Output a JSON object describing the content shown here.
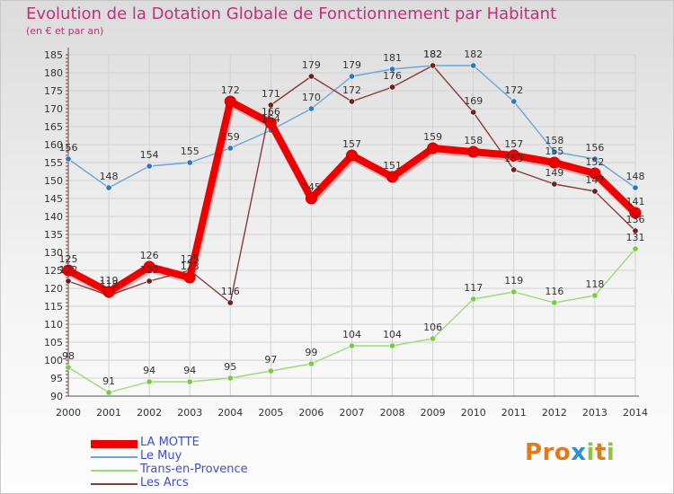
{
  "header": {
    "title": "Evolution de la Dotation Globale de Fonctionnement par Habitant",
    "subtitle": "(en € et par an)"
  },
  "logo": {
    "text": "Proxiti",
    "letters": [
      "P",
      "r",
      "o",
      "x",
      "i",
      "t",
      "i"
    ],
    "colors": [
      "#e07b1a",
      "#e07b1a",
      "#e07b1a",
      "#2a8fd6",
      "#8cc63f",
      "#e07b1a",
      "#8cc63f"
    ]
  },
  "chart_data": {
    "type": "line",
    "title": "Evolution de la Dotation Globale de Fonctionnement par Habitant",
    "subtitle": "(en € et par an)",
    "xlabel": "",
    "ylabel": "",
    "categories": [
      "2000",
      "2001",
      "2002",
      "2003",
      "2004",
      "2005",
      "2006",
      "2007",
      "2008",
      "2009",
      "2010",
      "2011",
      "2012",
      "2013",
      "2014"
    ],
    "ylim": [
      90,
      185
    ],
    "yticks": [
      90,
      95,
      100,
      105,
      110,
      115,
      120,
      125,
      130,
      135,
      140,
      145,
      150,
      155,
      160,
      165,
      170,
      175,
      180,
      185
    ],
    "grid": true,
    "legend_position": "bottom-left",
    "series": [
      {
        "name": "Trans-en-Provence",
        "color": "#99dd77",
        "marker": "#77cc44",
        "values": [
          98,
          91,
          94,
          94,
          95,
          97,
          99,
          104,
          104,
          106,
          117,
          119,
          116,
          118,
          131
        ],
        "labels": [
          "98",
          "91",
          "94",
          "94",
          "95",
          "97",
          "99",
          "104",
          "104",
          "106",
          "117",
          "119",
          "116",
          "118",
          "131"
        ]
      },
      {
        "name": "Le Muy",
        "color": "#6ba7d8",
        "marker": "#2d78c0",
        "values": [
          156,
          148,
          154,
          155,
          159,
          164,
          170,
          179,
          181,
          182,
          182,
          172,
          158,
          156,
          148
        ],
        "labels": [
          "156",
          "148",
          "154",
          "155",
          "159",
          "164",
          "170",
          "179",
          "181",
          "182",
          "182",
          "172",
          "158",
          "156",
          "148"
        ]
      },
      {
        "name": "Les Arcs",
        "color": "#8a3a3a",
        "marker": "#6e2020",
        "values": [
          122,
          118,
          122,
          125,
          116,
          171,
          179,
          172,
          176,
          182,
          169,
          153,
          149,
          147,
          136
        ],
        "labels": [
          "122",
          "118",
          "122",
          "125",
          "116",
          "171",
          "179",
          "172",
          "176",
          "182",
          "169",
          "153",
          "149",
          "147",
          "136"
        ]
      },
      {
        "name": "LA MOTTE",
        "color": "#ee0000",
        "marker": "#ee0000",
        "values": [
          125,
          119,
          126,
          123,
          172,
          166,
          145,
          157,
          151,
          159,
          158,
          157,
          155,
          152,
          141
        ],
        "labels": [
          "125",
          "119",
          "126",
          "123",
          "172",
          "166",
          "145",
          "157",
          "151",
          "159",
          "158",
          "157",
          "155",
          "152",
          "141"
        ]
      }
    ],
    "legend": [
      "LA MOTTE",
      "Le Muy",
      "Trans-en-Provence",
      "Les Arcs"
    ]
  }
}
